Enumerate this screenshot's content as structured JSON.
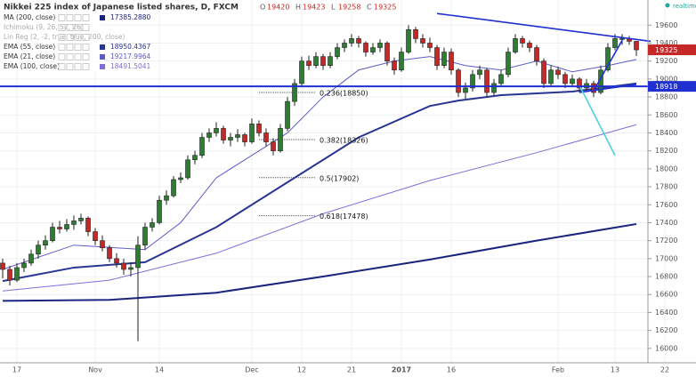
{
  "chart_data": {
    "type": "candlestick",
    "title": "Nikkei 225 index of Japanese listed shares, D, FXCM",
    "ohlc_letters": [
      "O",
      "H",
      "L",
      "C"
    ],
    "status": "realtime",
    "categories": [
      null,
      null,
      "17",
      null,
      null,
      null,
      null,
      null,
      null,
      null,
      null,
      null,
      null,
      "Nov",
      null,
      null,
      null,
      null,
      null,
      null,
      null,
      null,
      "14",
      null,
      null,
      null,
      null,
      null,
      null,
      null,
      null,
      null,
      null,
      null,
      null,
      "Dec",
      null,
      null,
      null,
      null,
      null,
      null,
      "12",
      null,
      null,
      null,
      null,
      null,
      null,
      "21",
      null,
      null,
      null,
      null,
      null,
      null,
      "2017",
      null,
      null,
      null,
      null,
      null,
      null,
      "16",
      null,
      null,
      null,
      null,
      null,
      null,
      null,
      null,
      null,
      null,
      null,
      null,
      null,
      null,
      "Feb",
      null,
      null,
      null,
      null,
      null,
      null,
      null,
      "13",
      null,
      null,
      null,
      null,
      null,
      null,
      "22"
    ],
    "ohlc": [
      [
        16950,
        17000,
        16780,
        16880
      ],
      [
        16880,
        16920,
        16700,
        16760
      ],
      [
        16760,
        16950,
        16740,
        16900
      ],
      [
        16900,
        17000,
        16850,
        16950
      ],
      [
        16950,
        17100,
        16920,
        17050
      ],
      [
        17050,
        17200,
        17000,
        17150
      ],
      [
        17150,
        17260,
        17100,
        17200
      ],
      [
        17200,
        17400,
        17180,
        17350
      ],
      [
        17350,
        17420,
        17280,
        17330
      ],
      [
        17330,
        17440,
        17300,
        17380
      ],
      [
        17380,
        17480,
        17320,
        17420
      ],
      [
        17420,
        17500,
        17380,
        17450
      ],
      [
        17450,
        17470,
        17250,
        17300
      ],
      [
        17300,
        17340,
        17150,
        17200
      ],
      [
        17200,
        17260,
        17080,
        17120
      ],
      [
        17120,
        17150,
        16960,
        17000
      ],
      [
        17000,
        17060,
        16900,
        16950
      ],
      [
        16950,
        17000,
        16820,
        16880
      ],
      [
        16880,
        16960,
        16800,
        16900
      ],
      [
        16900,
        17250,
        16080,
        17150
      ],
      [
        17150,
        17400,
        17100,
        17350
      ],
      [
        17350,
        17450,
        17300,
        17400
      ],
      [
        17400,
        17700,
        17380,
        17650
      ],
      [
        17650,
        17760,
        17600,
        17700
      ],
      [
        17700,
        17920,
        17680,
        17880
      ],
      [
        17880,
        17960,
        17840,
        17900
      ],
      [
        17900,
        18150,
        17880,
        18100
      ],
      [
        18100,
        18200,
        18050,
        18150
      ],
      [
        18150,
        18400,
        18120,
        18350
      ],
      [
        18350,
        18450,
        18300,
        18400
      ],
      [
        18400,
        18520,
        18360,
        18450
      ],
      [
        18450,
        18480,
        18280,
        18320
      ],
      [
        18320,
        18400,
        18250,
        18350
      ],
      [
        18350,
        18440,
        18300,
        18380
      ],
      [
        18380,
        18400,
        18250,
        18300
      ],
      [
        18300,
        18560,
        18280,
        18500
      ],
      [
        18500,
        18540,
        18360,
        18400
      ],
      [
        18400,
        18450,
        18250,
        18300
      ],
      [
        18300,
        18340,
        18150,
        18200
      ],
      [
        18200,
        18500,
        18180,
        18450
      ],
      [
        18450,
        18800,
        18420,
        18750
      ],
      [
        18750,
        19000,
        18700,
        18950
      ],
      [
        18950,
        19250,
        18920,
        19200
      ],
      [
        19200,
        19260,
        19100,
        19150
      ],
      [
        19150,
        19300,
        19120,
        19250
      ],
      [
        19250,
        19280,
        19100,
        19150
      ],
      [
        19150,
        19300,
        19120,
        19250
      ],
      [
        19250,
        19400,
        19220,
        19350
      ],
      [
        19350,
        19440,
        19300,
        19400
      ],
      [
        19400,
        19500,
        19360,
        19450
      ],
      [
        19450,
        19480,
        19350,
        19400
      ],
      [
        19400,
        19420,
        19250,
        19300
      ],
      [
        19300,
        19400,
        19270,
        19350
      ],
      [
        19350,
        19440,
        19300,
        19400
      ],
      [
        19400,
        19420,
        19150,
        19200
      ],
      [
        19200,
        19240,
        19050,
        19100
      ],
      [
        19100,
        19350,
        19080,
        19300
      ],
      [
        19300,
        19600,
        19280,
        19550
      ],
      [
        19550,
        19580,
        19400,
        19450
      ],
      [
        19450,
        19500,
        19350,
        19400
      ],
      [
        19400,
        19460,
        19300,
        19350
      ],
      [
        19350,
        19380,
        19100,
        19150
      ],
      [
        19150,
        19350,
        19120,
        19300
      ],
      [
        19300,
        19340,
        19050,
        19100
      ],
      [
        19100,
        19120,
        18800,
        18850
      ],
      [
        18850,
        18960,
        18780,
        18900
      ],
      [
        18900,
        19100,
        18860,
        19050
      ],
      [
        19050,
        19150,
        19000,
        19100
      ],
      [
        19100,
        19120,
        18800,
        18850
      ],
      [
        18850,
        19000,
        18820,
        18950
      ],
      [
        18950,
        19100,
        18920,
        19050
      ],
      [
        19050,
        19350,
        19020,
        19300
      ],
      [
        19300,
        19500,
        19280,
        19450
      ],
      [
        19450,
        19480,
        19350,
        19400
      ],
      [
        19400,
        19430,
        19300,
        19350
      ],
      [
        19350,
        19380,
        19150,
        19200
      ],
      [
        19200,
        19230,
        18900,
        18950
      ],
      [
        18950,
        19150,
        18920,
        19100
      ],
      [
        19100,
        19140,
        19000,
        19050
      ],
      [
        19050,
        19080,
        18900,
        18950
      ],
      [
        18950,
        19050,
        18920,
        19000
      ],
      [
        19000,
        19020,
        18850,
        18900
      ],
      [
        18900,
        19000,
        18860,
        18950
      ],
      [
        18950,
        18980,
        18800,
        18850
      ],
      [
        18850,
        19150,
        18830,
        19100
      ],
      [
        19100,
        19400,
        19080,
        19350
      ],
      [
        19350,
        19500,
        19320,
        19450
      ],
      [
        19450,
        19500,
        19380,
        19450
      ],
      [
        19450,
        19480,
        19380,
        19420
      ],
      [
        19420,
        19423,
        19258,
        19325
      ],
      null,
      null,
      null,
      null
    ],
    "up_color": "#2e7d32",
    "down_color": "#c62828",
    "series": [
      {
        "name": "MA (200, close)",
        "color": "#1a237e",
        "width": 2,
        "last_label": "17385.2880",
        "x": [
          0,
          15,
          30,
          45,
          60,
          75,
          89
        ],
        "values": [
          16530,
          16540,
          16620,
          16800,
          16990,
          17200,
          17385.288
        ]
      },
      {
        "name": "Ichimoku (9, 26, 52, 26)",
        "hidden": true
      },
      {
        "name": "Lin Reg (2, -2, true, true, 200, close)",
        "hidden": true
      },
      {
        "name": "EMA (55, close)",
        "color": "#283593",
        "width": 2,
        "last_label": "18950.4367",
        "x": [
          0,
          10,
          20,
          30,
          40,
          50,
          60,
          64,
          70,
          80,
          89
        ],
        "values": [
          16750,
          16900,
          16960,
          17350,
          17850,
          18350,
          18700,
          18760,
          18820,
          18860,
          18950.4367
        ]
      },
      {
        "name": "EMA (21, close)",
        "color": "#5c5cc8",
        "width": 1,
        "last_label": "19217.9964",
        "x": [
          0,
          10,
          20,
          25,
          30,
          35,
          40,
          45,
          50,
          55,
          60,
          65,
          70,
          75,
          80,
          85,
          89
        ],
        "values": [
          16880,
          17150,
          17100,
          17400,
          17900,
          18150,
          18400,
          18800,
          19100,
          19200,
          19250,
          19150,
          19100,
          19200,
          19080,
          19150,
          19217.9964
        ]
      },
      {
        "name": "EMA (100, close)",
        "color": "#7e6fd6",
        "width": 1,
        "last_label": "18491.5041",
        "x": [
          0,
          15,
          30,
          45,
          60,
          75,
          89
        ],
        "values": [
          16640,
          16760,
          17060,
          17500,
          17870,
          18180,
          18491.5041
        ]
      }
    ],
    "hline": {
      "value": 18918,
      "color": "#1f2fd0"
    },
    "drawings": [
      {
        "x": [
          61,
          91
        ],
        "values": [
          19730,
          19420
        ],
        "color": "#1f2fd0"
      },
      {
        "x": [
          81,
          89
        ],
        "values": [
          18850,
          18940
        ],
        "color": "#1f2fd0"
      },
      {
        "x": [
          83,
          87
        ],
        "values": [
          18870,
          19430
        ],
        "color": "#1f2fd0"
      },
      {
        "x": [
          81,
          86
        ],
        "values": [
          18930,
          18150
        ],
        "color": "#4dd0e1"
      }
    ],
    "fib": [
      {
        "label": "0.236(18850)",
        "value": 18850,
        "x": [
          36,
          44
        ]
      },
      {
        "label": "0.382(18326)",
        "value": 18326,
        "x": [
          36,
          44
        ]
      },
      {
        "label": "0.5(17902)",
        "value": 17902,
        "x": [
          36,
          44
        ]
      },
      {
        "label": "0.618(17478)",
        "value": 17478,
        "x": [
          36,
          44
        ]
      }
    ],
    "ylim": [
      15840,
      19880
    ],
    "yticks": [
      16000,
      16200,
      16400,
      16600,
      16800,
      17000,
      17200,
      17400,
      17600,
      17800,
      18000,
      18200,
      18400,
      18600,
      18800,
      19000,
      19200,
      19400,
      19600
    ],
    "grid": true
  }
}
